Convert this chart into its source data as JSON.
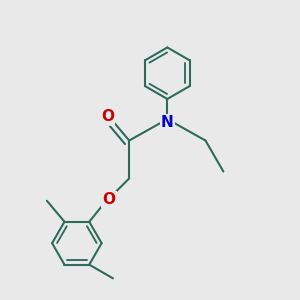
{
  "bg_color": "#e9e9e9",
  "bond_color": "#2d6b5a",
  "N_color": "#0000cc",
  "O_color": "#cc0000",
  "bond_width": 1.5,
  "font_size": 9,
  "figsize": [
    3.0,
    3.0
  ],
  "dpi": 100,
  "xlim": [
    -1.0,
    3.5
  ],
  "ylim": [
    -3.2,
    2.8
  ]
}
